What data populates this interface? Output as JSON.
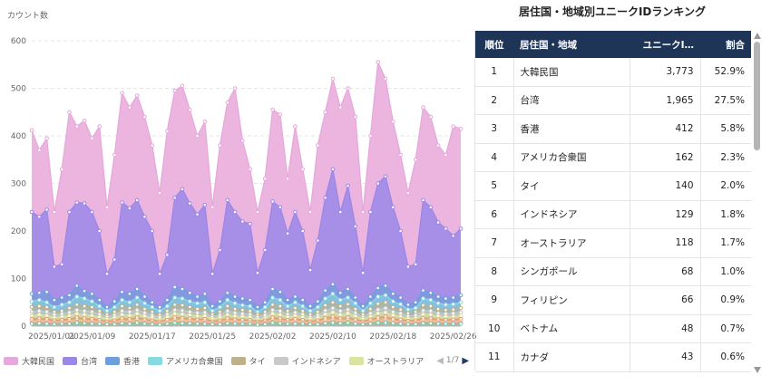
{
  "colors": {
    "大韓民国": "#e7a8db",
    "台湾": "#9b87e8",
    "香港": "#6d9fdc",
    "アメリカ合衆国": "#86dbe0",
    "タイ": "#bdb08a",
    "インドネシア": "#c9c9c9",
    "オーストラリア": "#dbe3a0",
    "header_bg": "#1e3557"
  },
  "chart_data": {
    "type": "area",
    "stacked": false,
    "title": "",
    "ylabel": "カウント数",
    "xlabel": "",
    "ylim": [
      0,
      600
    ],
    "yticks": [
      0,
      100,
      200,
      300,
      400,
      500,
      600
    ],
    "xtick_labels": [
      "2025/01/01",
      "2025/01/09",
      "2025/01/17",
      "2025/01/25",
      "2025/02/02",
      "2025/02/10",
      "2025/02/18",
      "2025/02/26"
    ],
    "xtick_index": [
      0,
      8,
      16,
      24,
      32,
      40,
      48,
      56
    ],
    "x_count": 58,
    "series": [
      {
        "name": "大韓民国",
        "values": [
          412,
          370,
          395,
          240,
          330,
          450,
          420,
          432,
          395,
          420,
          250,
          360,
          490,
          460,
          485,
          440,
          380,
          280,
          410,
          495,
          505,
          455,
          400,
          430,
          250,
          380,
          470,
          500,
          390,
          330,
          240,
          310,
          455,
          445,
          310,
          420,
          330,
          240,
          380,
          450,
          520,
          460,
          500,
          440,
          240,
          400,
          555,
          520,
          430,
          360,
          280,
          350,
          460,
          440,
          380,
          360,
          420,
          415
        ]
      },
      {
        "name": "台湾",
        "values": [
          240,
          230,
          245,
          125,
          130,
          240,
          260,
          258,
          240,
          200,
          110,
          140,
          260,
          248,
          265,
          230,
          200,
          110,
          150,
          270,
          288,
          258,
          235,
          255,
          110,
          160,
          265,
          240,
          220,
          215,
          112,
          160,
          262,
          250,
          195,
          240,
          200,
          118,
          180,
          270,
          330,
          240,
          295,
          210,
          112,
          240,
          300,
          315,
          250,
          200,
          125,
          130,
          265,
          250,
          218,
          205,
          190,
          205
        ]
      },
      {
        "name": "香港",
        "values": [
          68,
          70,
          72,
          55,
          60,
          65,
          85,
          74,
          68,
          55,
          40,
          52,
          72,
          68,
          78,
          62,
          50,
          40,
          55,
          82,
          78,
          70,
          62,
          68,
          42,
          52,
          70,
          62,
          58,
          55,
          40,
          50,
          78,
          72,
          55,
          62,
          55,
          42,
          52,
          75,
          88,
          70,
          78,
          60,
          42,
          62,
          80,
          85,
          68,
          60,
          45,
          50,
          75,
          70,
          62,
          58,
          60,
          65
        ]
      },
      {
        "name": "アメリカ合衆国",
        "values": [
          52,
          55,
          50,
          40,
          45,
          50,
          62,
          58,
          52,
          42,
          32,
          40,
          55,
          50,
          60,
          48,
          40,
          32,
          42,
          60,
          58,
          52,
          48,
          50,
          32,
          40,
          55,
          48,
          44,
          42,
          30,
          40,
          60,
          55,
          42,
          50,
          42,
          32,
          40,
          58,
          68,
          55,
          60,
          48,
          32,
          48,
          62,
          65,
          52,
          46,
          35,
          38,
          58,
          55,
          48,
          45,
          46,
          50
        ]
      },
      {
        "name": "タイ",
        "values": [
          40,
          42,
          40,
          30,
          32,
          38,
          45,
          42,
          40,
          32,
          25,
          30,
          42,
          38,
          45,
          36,
          30,
          24,
          32,
          45,
          44,
          40,
          36,
          38,
          25,
          30,
          42,
          36,
          34,
          32,
          24,
          30,
          45,
          42,
          32,
          38,
          32,
          25,
          30,
          44,
          50,
          42,
          46,
          36,
          25,
          36,
          47,
          50,
          40,
          35,
          27,
          30,
          44,
          42,
          36,
          34,
          35,
          38
        ]
      },
      {
        "name": "インドネシア",
        "values": [
          30,
          32,
          30,
          24,
          26,
          29,
          34,
          32,
          30,
          25,
          20,
          23,
          32,
          30,
          34,
          28,
          23,
          19,
          25,
          34,
          33,
          30,
          28,
          29,
          19,
          23,
          32,
          28,
          26,
          25,
          19,
          23,
          34,
          32,
          25,
          29,
          25,
          19,
          23,
          33,
          38,
          32,
          35,
          28,
          19,
          27,
          35,
          38,
          30,
          27,
          21,
          23,
          33,
          32,
          27,
          26,
          27,
          29
        ]
      },
      {
        "name": "オーストラリア",
        "values": [
          22,
          24,
          22,
          18,
          20,
          22,
          26,
          24,
          22,
          19,
          15,
          18,
          24,
          22,
          26,
          21,
          18,
          14,
          19,
          26,
          25,
          23,
          21,
          22,
          15,
          18,
          24,
          21,
          20,
          19,
          14,
          17,
          26,
          24,
          19,
          22,
          19,
          15,
          18,
          25,
          29,
          24,
          27,
          21,
          15,
          20,
          27,
          29,
          23,
          20,
          16,
          17,
          25,
          24,
          21,
          20,
          20,
          22
        ]
      },
      {
        "name": "シンガポール",
        "values": [
          15,
          16,
          15,
          12,
          13,
          15,
          18,
          16,
          15,
          13,
          10,
          12,
          16,
          15,
          18,
          14,
          12,
          10,
          13,
          18,
          17,
          16,
          14,
          15,
          10,
          12,
          16,
          14,
          13,
          13,
          10,
          12,
          18,
          16,
          13,
          15,
          13,
          10,
          12,
          17,
          20,
          16,
          18,
          14,
          10,
          14,
          18,
          20,
          15,
          14,
          11,
          12,
          17,
          16,
          14,
          13,
          14,
          15
        ]
      },
      {
        "name": "フィリピン",
        "values": [
          10,
          11,
          10,
          8,
          9,
          10,
          12,
          11,
          10,
          9,
          7,
          8,
          11,
          10,
          12,
          10,
          8,
          7,
          9,
          12,
          12,
          11,
          10,
          10,
          7,
          8,
          11,
          10,
          9,
          9,
          7,
          8,
          12,
          11,
          9,
          10,
          9,
          7,
          8,
          12,
          13,
          11,
          12,
          10,
          7,
          10,
          12,
          13,
          10,
          9,
          8,
          8,
          12,
          11,
          10,
          9,
          9,
          10
        ]
      },
      {
        "name": "ベトナム",
        "values": [
          7,
          8,
          7,
          6,
          6,
          7,
          9,
          8,
          7,
          6,
          5,
          6,
          8,
          7,
          9,
          7,
          6,
          5,
          6,
          9,
          8,
          8,
          7,
          7,
          5,
          6,
          8,
          7,
          6,
          6,
          5,
          6,
          9,
          8,
          6,
          7,
          6,
          5,
          6,
          8,
          10,
          8,
          9,
          7,
          5,
          7,
          9,
          10,
          7,
          7,
          5,
          6,
          8,
          8,
          7,
          6,
          7,
          7
        ]
      },
      {
        "name": "カナダ",
        "values": [
          5,
          6,
          5,
          4,
          5,
          5,
          7,
          6,
          5,
          5,
          4,
          4,
          6,
          5,
          7,
          5,
          4,
          3,
          5,
          7,
          6,
          6,
          5,
          5,
          4,
          4,
          6,
          5,
          5,
          5,
          3,
          4,
          7,
          6,
          5,
          5,
          5,
          4,
          4,
          6,
          7,
          6,
          7,
          5,
          4,
          5,
          7,
          7,
          6,
          5,
          4,
          4,
          6,
          6,
          5,
          5,
          5,
          5
        ]
      }
    ]
  },
  "legend": {
    "items": [
      "大韓民国",
      "台湾",
      "香港",
      "アメリカ合衆国",
      "タイ",
      "インドネシア",
      "オーストラリア"
    ],
    "page": "1/7"
  },
  "ranking": {
    "title": "居住国・地域別ユニークIDランキング",
    "headers": {
      "rank": "順位",
      "region": "居住国・地域",
      "count": "ユニークI…",
      "share": "割合"
    },
    "rows": [
      {
        "rank": "1",
        "region": "大韓民国",
        "count": "3,773",
        "share": "52.9%"
      },
      {
        "rank": "2",
        "region": "台湾",
        "count": "1,965",
        "share": "27.5%"
      },
      {
        "rank": "3",
        "region": "香港",
        "count": "412",
        "share": "5.8%"
      },
      {
        "rank": "4",
        "region": "アメリカ合衆国",
        "count": "162",
        "share": "2.3%"
      },
      {
        "rank": "5",
        "region": "タイ",
        "count": "140",
        "share": "2.0%"
      },
      {
        "rank": "6",
        "region": "インドネシア",
        "count": "129",
        "share": "1.8%"
      },
      {
        "rank": "7",
        "region": "オーストラリア",
        "count": "118",
        "share": "1.7%"
      },
      {
        "rank": "8",
        "region": "シンガポール",
        "count": "68",
        "share": "1.0%"
      },
      {
        "rank": "9",
        "region": "フィリピン",
        "count": "66",
        "share": "0.9%"
      },
      {
        "rank": "10",
        "region": "ベトナム",
        "count": "48",
        "share": "0.7%"
      },
      {
        "rank": "11",
        "region": "カナダ",
        "count": "43",
        "share": "0.6%"
      }
    ]
  }
}
